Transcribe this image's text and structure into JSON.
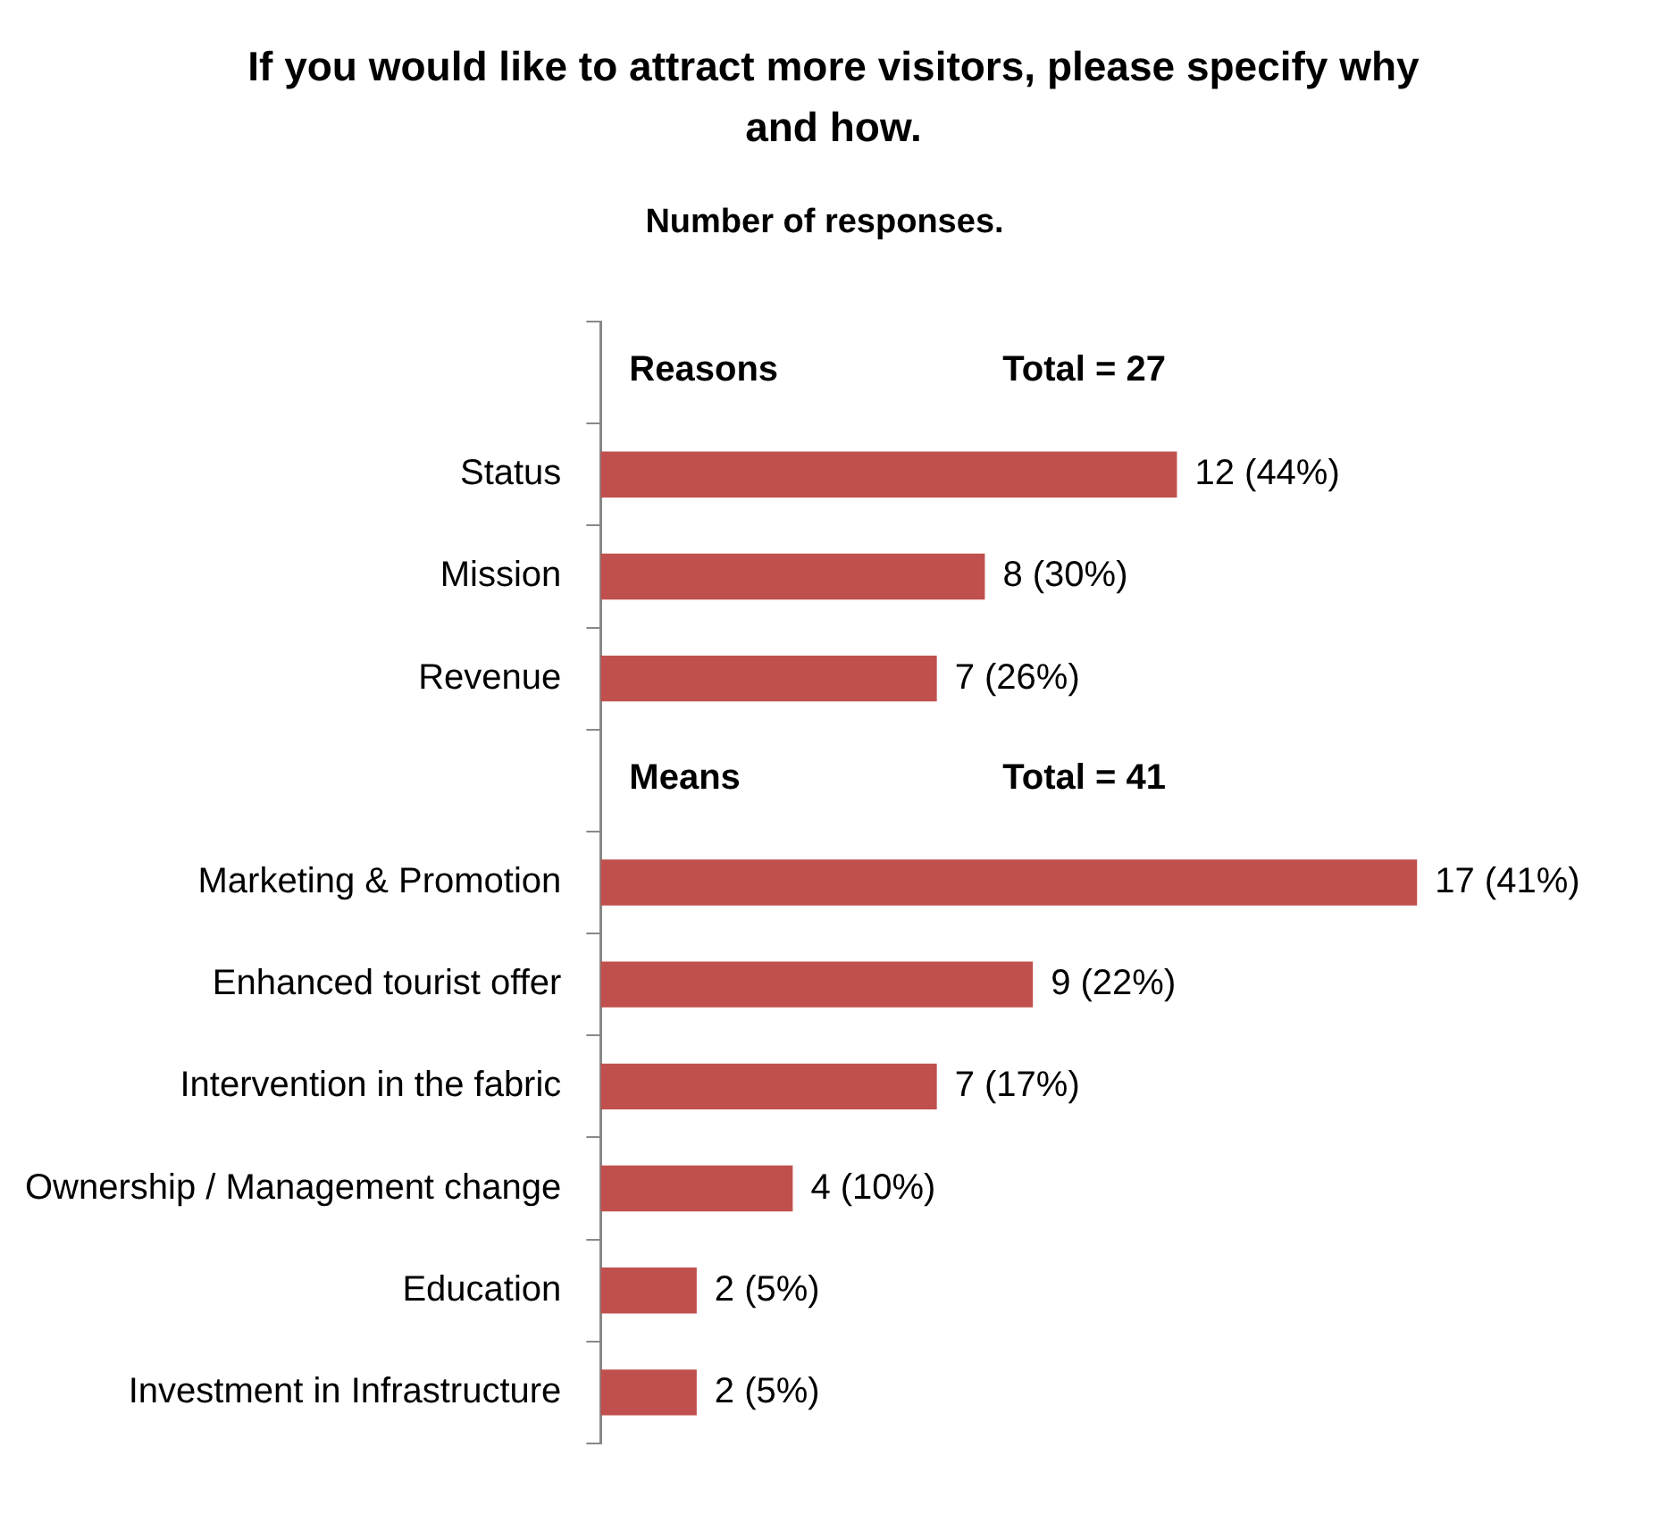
{
  "chart_data": {
    "type": "bar",
    "orientation": "horizontal",
    "title": "If you would like to attract more visitors, please specify why and how.",
    "subtitle": "Number of responses.",
    "categories": [
      null,
      "Status",
      "Mission",
      "Revenue",
      null,
      "Marketing & Promotion",
      "Enhanced tourist offer",
      "Intervention in the fabric",
      "Ownership / Management change",
      "Education",
      "Investment in Infrastructure"
    ],
    "values": [
      null,
      12,
      8,
      7,
      null,
      17,
      9,
      7,
      4,
      2,
      2
    ],
    "value_labels": [
      null,
      "12 (44%)",
      "8 (30%)",
      "7 (26%)",
      null,
      "17 (41%)",
      "9 (22%)",
      "7 (17%)",
      "4 (10%)",
      "2 (5%)",
      "2 (5%)"
    ],
    "color": "#c0504d",
    "annotations": [
      "Reasons",
      "Total = 27",
      "Means",
      "Total = 41"
    ],
    "legend": false,
    "grid": false,
    "tick_labels": "y"
  }
}
